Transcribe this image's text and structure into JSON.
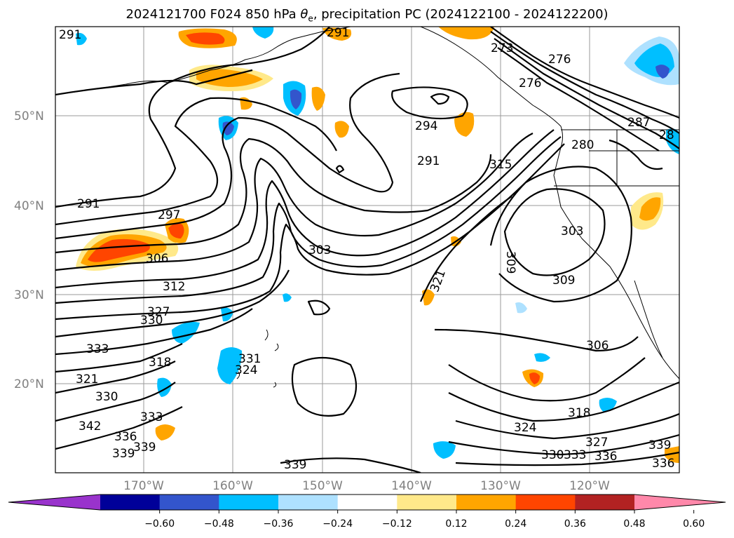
{
  "title": {
    "prefix": "2024121700 F024 850 hPa ",
    "theta_symbol": "θ",
    "theta_sub": "e",
    "suffix": ", precipitation PC (2024122100 - 2024122200)"
  },
  "map": {
    "lat_labels": [
      "50°N",
      "40°N",
      "30°N",
      "20°N"
    ],
    "lon_labels": [
      "170°W",
      "160°W",
      "150°W",
      "140°W",
      "130°W",
      "120°W"
    ],
    "contour_labels": [
      "291",
      "291",
      "294",
      "291",
      "291",
      "297",
      "306",
      "303",
      "312",
      "315",
      "273",
      "276",
      "276",
      "280",
      "287",
      "28",
      "303",
      "309",
      "309",
      "321",
      "327",
      "330",
      "333",
      "321",
      "330",
      "333",
      "336",
      "339",
      "342",
      "339",
      "331",
      "324",
      "318",
      "339",
      "306",
      "318",
      "324",
      "327",
      "330",
      "333",
      "336",
      "339",
      "336"
    ],
    "precip_colors": {
      "negative_strong": "#2a55c8",
      "negative_mid": "#00bfff",
      "negative_light": "#aee1ff",
      "positive_light": "#ffe98a",
      "positive_mid": "#ffa500",
      "positive_strong": "#ff4500"
    }
  },
  "colorbar": {
    "colors": [
      "#9933cc",
      "#000099",
      "#3355cc",
      "#00bfff",
      "#aee1ff",
      "#ffffff",
      "#ffe98a",
      "#ffa500",
      "#ff4500",
      "#b22222",
      "#ff88aa"
    ],
    "tick_labels": [
      "−0.60",
      "−0.48",
      "−0.36",
      "−0.24",
      "−0.12",
      "0.12",
      "0.24",
      "0.36",
      "0.48",
      "0.60"
    ]
  }
}
